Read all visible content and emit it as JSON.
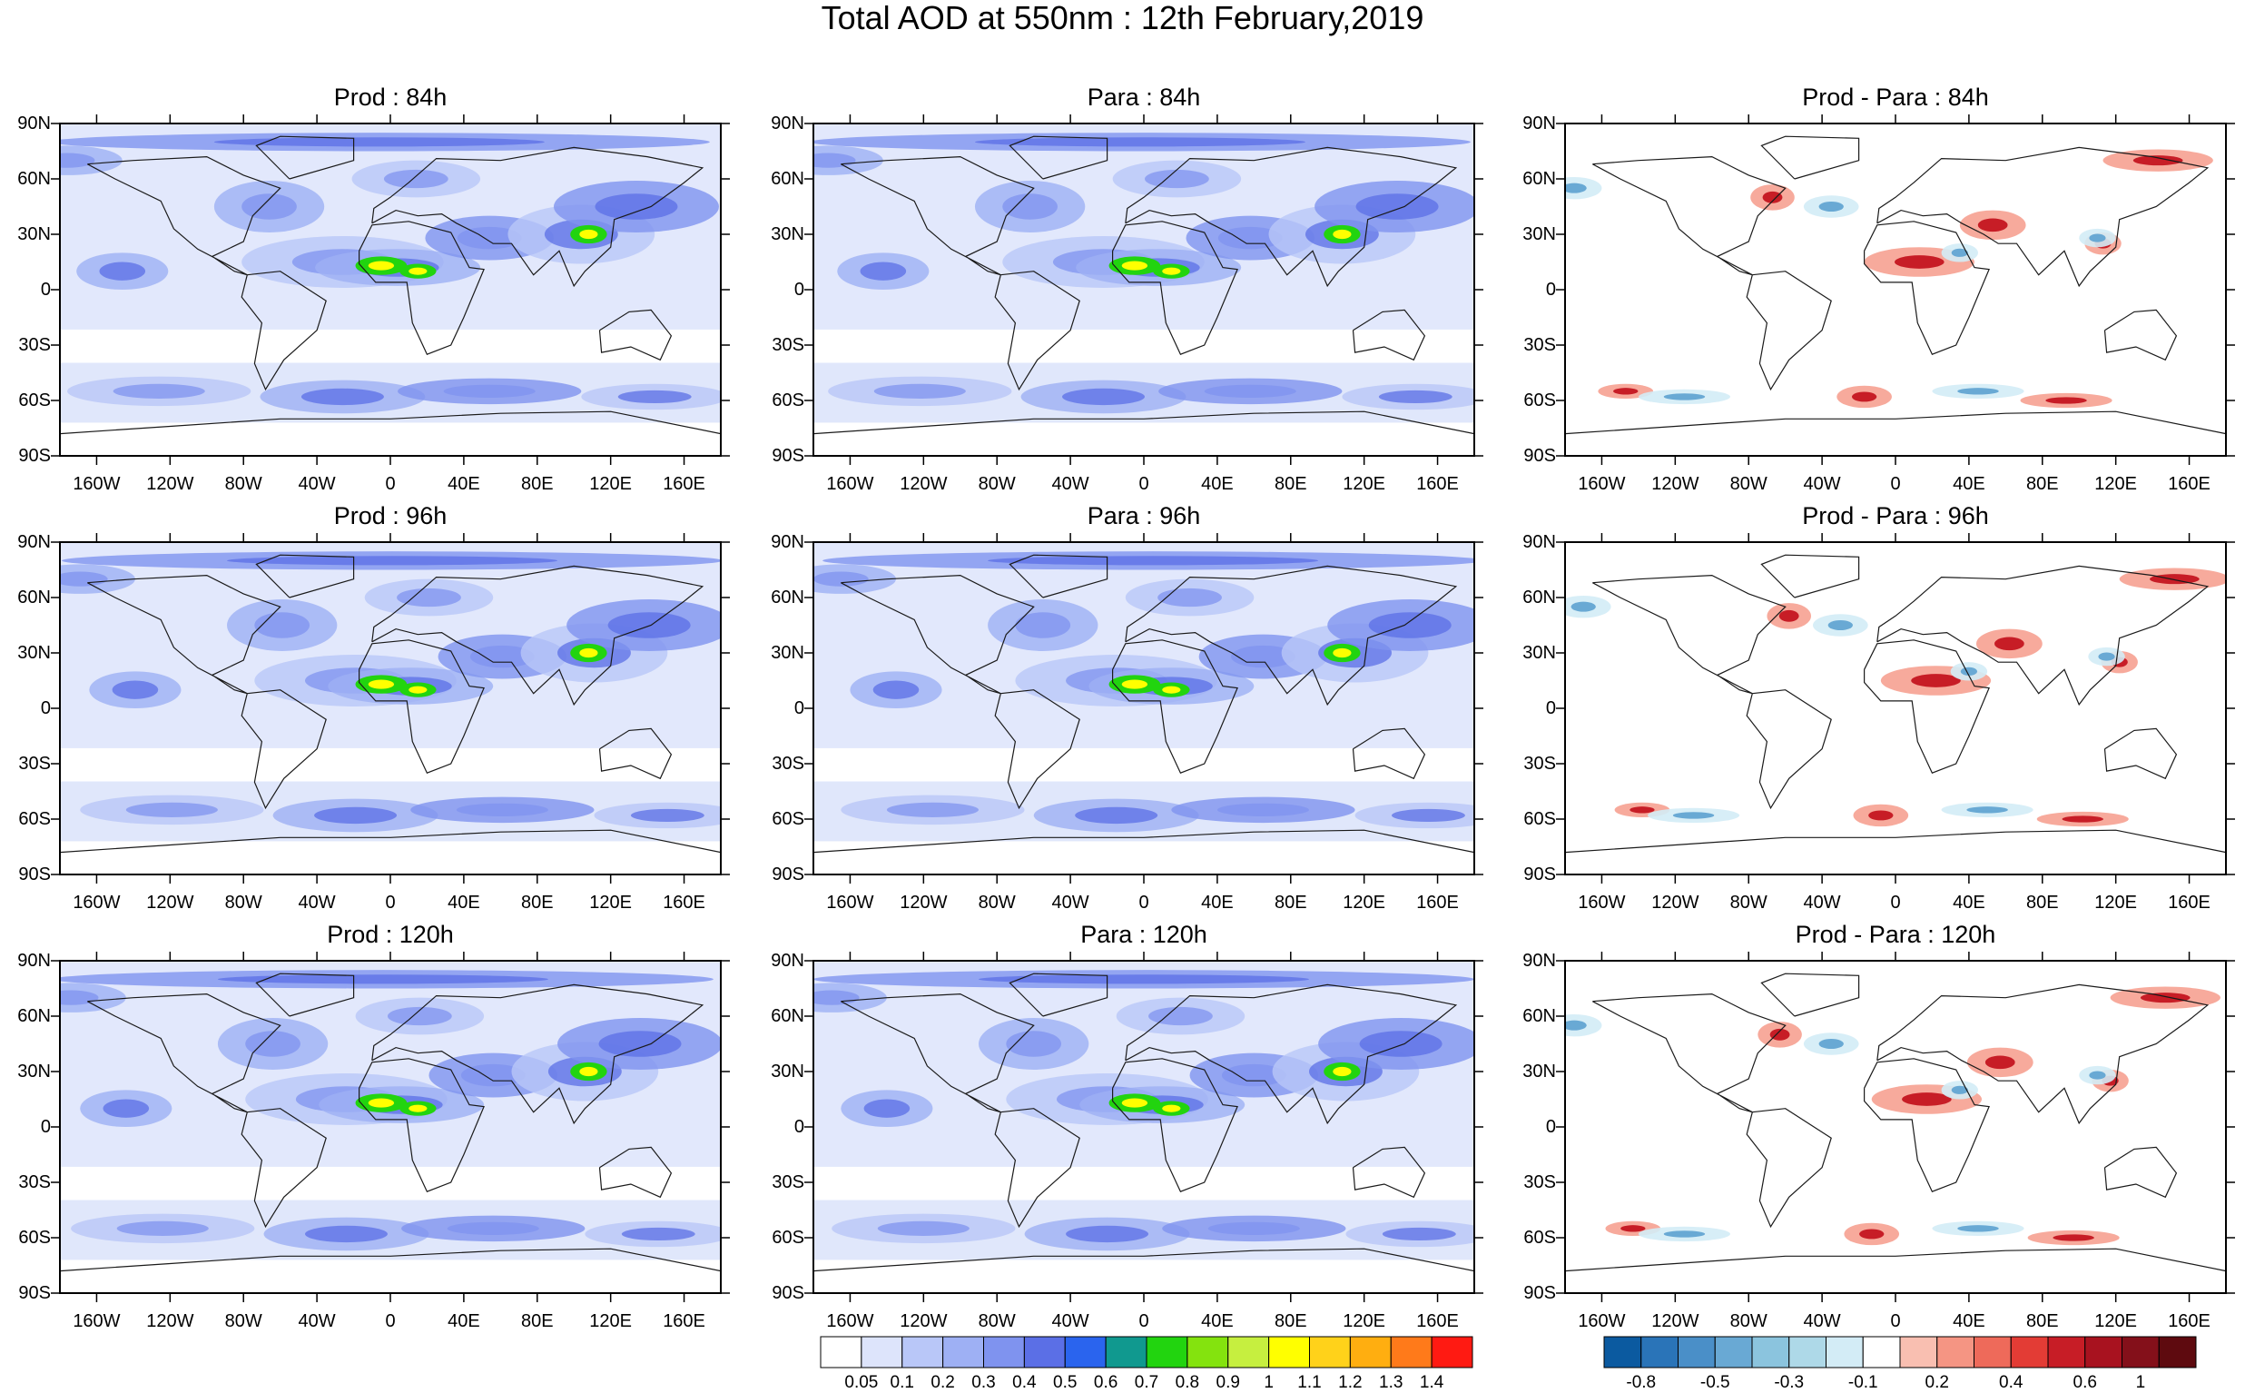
{
  "title": "Total AOD at 550nm : 12th February,2019",
  "lat_ticks": [
    "90N",
    "60N",
    "30N",
    "0",
    "30S",
    "60S",
    "90S"
  ],
  "lon_ticks": [
    "160W",
    "120W",
    "80W",
    "40W",
    "0",
    "40E",
    "80E",
    "120E",
    "160E"
  ],
  "panels": [
    {
      "title": "Prod : 84h",
      "field": "aod"
    },
    {
      "title": "Para : 84h",
      "field": "aod"
    },
    {
      "title": "Prod - Para : 84h",
      "field": "diff"
    },
    {
      "title": "Prod : 96h",
      "field": "aod"
    },
    {
      "title": "Para : 96h",
      "field": "aod"
    },
    {
      "title": "Prod - Para : 96h",
      "field": "diff"
    },
    {
      "title": "Prod : 120h",
      "field": "aod"
    },
    {
      "title": "Para : 120h",
      "field": "aod"
    },
    {
      "title": "Prod - Para : 120h",
      "field": "diff"
    }
  ],
  "aod_colorbar": {
    "labels": [
      "0.05",
      "0.1",
      "0.2",
      "0.3",
      "0.4",
      "0.5",
      "0.6",
      "0.7",
      "0.8",
      "0.9",
      "1",
      "1.1",
      "1.2",
      "1.3",
      "1.4"
    ],
    "colors": [
      "#ffffff",
      "#dde4fb",
      "#b9c7f8",
      "#9eb0f4",
      "#7f93ef",
      "#5b6fe6",
      "#2a64ee",
      "#10998f",
      "#22d40f",
      "#84e30e",
      "#c6ef3f",
      "#ffff00",
      "#ffd21a",
      "#ffae10",
      "#ff7a1a",
      "#ff1a12"
    ]
  },
  "diff_colorbar": {
    "labels": [
      "-0.8",
      "-0.5",
      "-0.3",
      "-0.1",
      "0.2",
      "0.4",
      "0.6",
      "1"
    ],
    "colors": [
      "#0b5aa0",
      "#2a74b8",
      "#4a8fc8",
      "#69a9d4",
      "#8bc4de",
      "#aed9e8",
      "#d3ecf6",
      "#ffffff",
      "#f9bfb1",
      "#f59583",
      "#ee6a5a",
      "#e33c35",
      "#c71d26",
      "#a8121f",
      "#84101a",
      "#5e0a0f"
    ]
  }
}
